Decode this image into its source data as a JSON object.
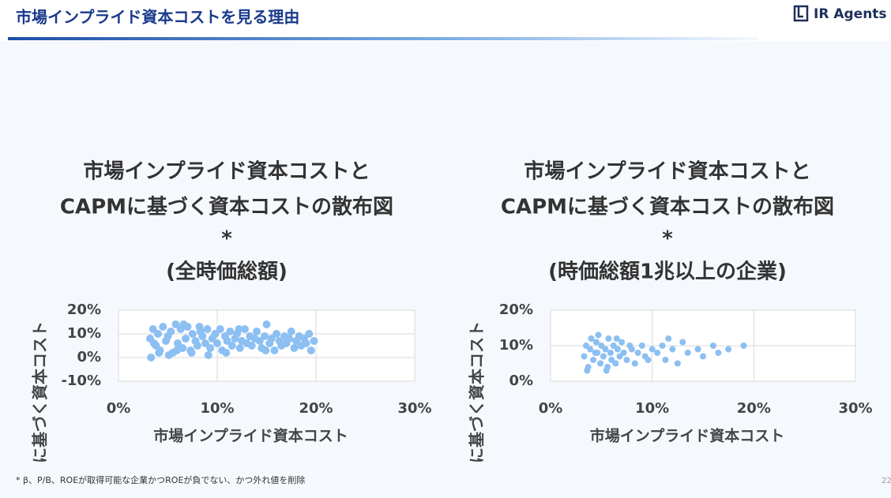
{
  "header": {
    "title": "市場インプライド資本コストを見る理由",
    "logo": "IR Agents"
  },
  "chart_data": [
    {
      "type": "scatter",
      "title": [
        "市場インプライド資本コストと",
        "CAPMに基づく資本コストの散布図",
        "*",
        "(全時価総額)"
      ],
      "xlabel": "市場インプライド資本コスト",
      "ylabel": "に基づく資本コスト",
      "color": "#8cbff2",
      "grid": true,
      "xlim": [
        0,
        30
      ],
      "xticks": [
        {
          "value": 0,
          "label": "0%"
        },
        {
          "value": 10,
          "label": "10%"
        },
        {
          "value": 20,
          "label": "20%"
        },
        {
          "value": 30,
          "label": "30%"
        }
      ],
      "ylim": [
        -10,
        20
      ],
      "yticks": [
        {
          "value": -10,
          "label": "-10%"
        },
        {
          "value": 0,
          "label": "0%"
        },
        {
          "value": 10,
          "label": "10%"
        },
        {
          "value": 20,
          "label": "20%"
        }
      ],
      "x": [
        3.2,
        3.5,
        3.8,
        4.0,
        4.2,
        4.5,
        4.8,
        5.0,
        5.3,
        5.5,
        5.8,
        6.0,
        6.3,
        6.5,
        6.8,
        7.0,
        7.3,
        7.5,
        7.8,
        8.0,
        8.3,
        8.5,
        8.8,
        9.0,
        9.3,
        9.5,
        9.8,
        10.0,
        10.3,
        10.5,
        10.8,
        11.0,
        11.3,
        11.5,
        11.8,
        12.0,
        12.3,
        12.5,
        12.8,
        13.0,
        13.3,
        13.5,
        13.8,
        14.0,
        14.3,
        14.5,
        14.8,
        15.0,
        15.3,
        15.5,
        15.8,
        16.0,
        16.3,
        16.5,
        16.8,
        17.0,
        17.3,
        17.5,
        17.8,
        18.0,
        18.3,
        18.5,
        18.8,
        19.0,
        19.3,
        19.5,
        19.8,
        3.3,
        4.1,
        5.1,
        5.9,
        6.6,
        7.4,
        8.2,
        9.1,
        10.9,
        12.2,
        14.9,
        3.6,
        6.1
      ],
      "values": [
        8,
        12,
        5,
        10,
        3,
        13,
        7,
        9,
        11,
        2,
        14,
        6,
        12,
        4,
        8,
        13,
        3,
        10,
        7,
        5,
        11,
        9,
        6,
        12,
        4,
        8,
        10,
        6,
        12,
        3,
        9,
        7,
        11,
        5,
        8,
        10,
        4,
        7,
        12,
        6,
        9,
        5,
        8,
        11,
        7,
        4,
        9,
        14,
        6,
        8,
        3,
        10,
        7,
        5,
        9,
        6,
        8,
        11,
        4,
        7,
        9,
        5,
        8,
        6,
        10,
        3,
        7,
        0,
        2,
        1,
        3,
        14,
        2,
        13,
        1,
        2,
        12,
        3,
        6,
        4
      ]
    },
    {
      "type": "scatter",
      "title": [
        "市場インプライド資本コストと",
        "CAPMに基づく資本コストの散布図",
        "*",
        "(時価総額1兆以上の企業)"
      ],
      "xlabel": "市場インプライド資本コスト",
      "ylabel": "に基づく資本コスト",
      "color": "#8cbff2",
      "grid": true,
      "xlim": [
        0,
        30
      ],
      "xticks": [
        {
          "value": 0,
          "label": "0%"
        },
        {
          "value": 10,
          "label": "10%"
        },
        {
          "value": 20,
          "label": "20%"
        },
        {
          "value": 30,
          "label": "30%"
        }
      ],
      "ylim": [
        0,
        20
      ],
      "yticks": [
        {
          "value": 0,
          "label": "0%"
        },
        {
          "value": 10,
          "label": "10%"
        },
        {
          "value": 20,
          "label": "20%"
        }
      ],
      "x": [
        3.3,
        3.5,
        3.7,
        3.9,
        4.0,
        4.2,
        4.4,
        4.5,
        4.7,
        4.9,
        5.0,
        5.2,
        5.4,
        5.5,
        5.7,
        5.9,
        6.0,
        6.2,
        6.4,
        6.6,
        6.8,
        7.0,
        7.2,
        7.5,
        7.8,
        8.0,
        8.3,
        8.6,
        9.0,
        9.3,
        9.6,
        10.0,
        10.5,
        11.0,
        11.3,
        11.6,
        12.0,
        12.5,
        13.0,
        13.5,
        14.5,
        15.0,
        16.0,
        16.5,
        17.5,
        19.0,
        3.6,
        4.6,
        5.6,
        6.5
      ],
      "values": [
        7,
        10,
        4,
        9,
        12,
        6,
        8,
        11,
        13,
        5,
        10,
        7,
        9,
        3,
        12,
        8,
        6,
        10,
        5,
        9,
        7,
        11,
        8,
        6,
        10,
        9,
        5,
        8,
        10,
        7,
        6,
        9,
        8,
        10,
        6,
        12,
        9,
        5,
        11,
        8,
        9,
        7,
        10,
        8,
        9,
        10,
        3,
        8,
        4,
        12
      ]
    }
  ],
  "footnote": "* β、P/B、ROEが取得可能な企業かつROEが負でない、かつ外れ値を削除",
  "page": "22"
}
